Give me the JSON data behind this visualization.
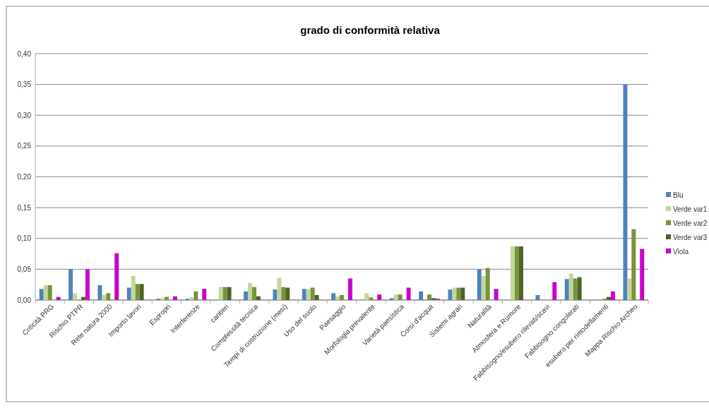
{
  "chart_data": {
    "type": "bar",
    "title": "grado di conformità relativa",
    "categories": [
      "Criticità PRG",
      "Rischio PTPR",
      "Rete natura 2000",
      "Importo lavori",
      "Espropri",
      "Interferenze",
      "cantieri",
      "Complessità tecnica",
      "Tempi di costruzione (mesi)",
      "Uso del suolo",
      "Paesaggio",
      "Morfologia prevalente",
      "Varietà paesistica",
      "Corsi d'acqua",
      "Sistemi agrari",
      "Naturalità",
      "Atmosfera e Rumore",
      "Fabbisogno/esubero rilevati/scavi",
      "Fabbisogno congolerati",
      "esubero per rimodellamenti",
      "Mappa Rischio Archeo"
    ],
    "series": [
      {
        "name": "Blu",
        "color": "#4f81bd",
        "values": [
          0.018,
          0.05,
          0.024,
          0.02,
          0.002,
          0.002,
          0,
          0.014,
          0.017,
          0.018,
          0.011,
          0,
          0.003,
          0.014,
          0.017,
          0.05,
          0,
          0.008,
          0.034,
          0,
          0.35
        ]
      },
      {
        "name": "Verde var1",
        "color": "#c3d69b",
        "values": [
          0.024,
          0.011,
          0.008,
          0.039,
          0.003,
          0.004,
          0.021,
          0.028,
          0.036,
          0.018,
          0.006,
          0.011,
          0.009,
          0,
          0.02,
          0.039,
          0.087,
          0,
          0.043,
          0,
          0.035
        ]
      },
      {
        "name": "Verde var2",
        "color": "#77933c",
        "values": [
          0.024,
          0,
          0.011,
          0.026,
          0.005,
          0.014,
          0.021,
          0.021,
          0.021,
          0.02,
          0.008,
          0.004,
          0.009,
          0.009,
          0.02,
          0.052,
          0.087,
          0,
          0.035,
          0.002,
          0.115
        ]
      },
      {
        "name": "Verde var3",
        "color": "#4f6228",
        "values": [
          0,
          0.005,
          0,
          0.026,
          0,
          0,
          0.021,
          0.006,
          0.02,
          0.008,
          0,
          0,
          0,
          0.003,
          0.02,
          0,
          0.087,
          0,
          0.037,
          0.005,
          0
        ]
      },
      {
        "name": "Viola",
        "color": "#cc00cc",
        "values": [
          0.005,
          0.05,
          0.076,
          0,
          0.006,
          0.018,
          0,
          0,
          0,
          0,
          0.035,
          0.009,
          0.02,
          0.002,
          0,
          0.018,
          0,
          0.029,
          0,
          0.014,
          0.083
        ]
      }
    ],
    "ylim": [
      0,
      0.4
    ],
    "yticks": [
      {
        "value": 0,
        "label": "0,00"
      },
      {
        "value": 0.05,
        "label": "0,05"
      },
      {
        "value": 0.1,
        "label": "0,10"
      },
      {
        "value": 0.15,
        "label": "0,15"
      },
      {
        "value": 0.2,
        "label": "0,20"
      },
      {
        "value": 0.25,
        "label": "0,25"
      },
      {
        "value": 0.3,
        "label": "0,30"
      },
      {
        "value": 0.35,
        "label": "0,35"
      },
      {
        "value": 0.4,
        "label": "0,40"
      }
    ],
    "grid": "y",
    "legend": "right"
  }
}
